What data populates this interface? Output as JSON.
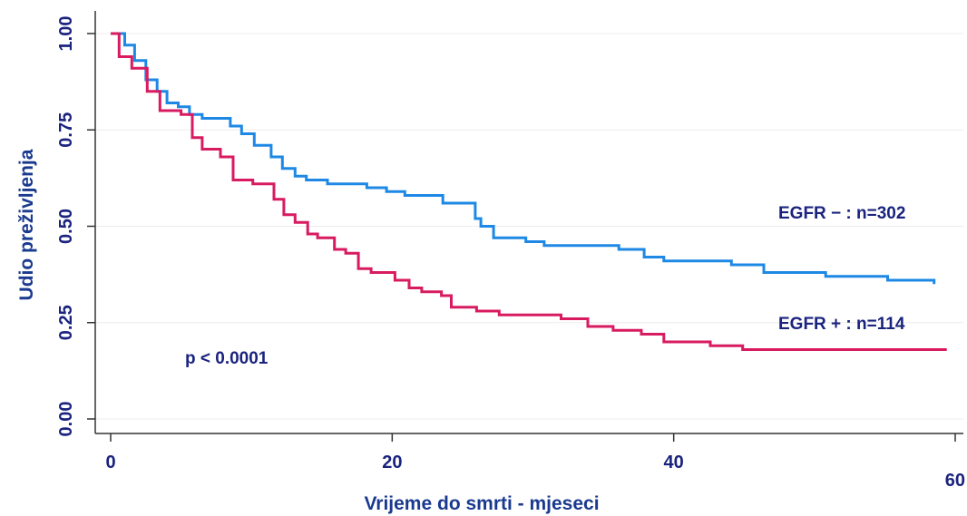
{
  "chart_data": {
    "type": "line",
    "step": true,
    "title": "",
    "xlabel": "Vrijeme do smrti - mjeseci",
    "ylabel": "Udio preživljenja",
    "xlim": [
      0,
      60
    ],
    "ylim": [
      0,
      1
    ],
    "x_ticks": [
      0,
      20,
      40,
      60
    ],
    "x_tick_labels": [
      "0",
      "20",
      "40",
      "60"
    ],
    "y_ticks": [
      0,
      0.25,
      0.5,
      0.75,
      1
    ],
    "y_tick_labels": [
      "0.00",
      "0.25",
      "0.50",
      "0.75",
      "1.00"
    ],
    "grid": "horizontal",
    "series": [
      {
        "name": "EGFR − : n=302",
        "color": "#1e88e5",
        "x": [
          0,
          1,
          1.7,
          2.5,
          3.3,
          4,
          4.8,
          5.6,
          6.5,
          8.5,
          9.3,
          10.2,
          11.4,
          12.2,
          13.1,
          13.9,
          14.6,
          15.4,
          16.7,
          18.2,
          19.6,
          20.9,
          23.6,
          25.9,
          26.3,
          27.2,
          29.5,
          30.8,
          32.8,
          36.1,
          37.9,
          39.3,
          41.1,
          44.1,
          46.4,
          50.8,
          55.2,
          58.5
        ],
        "y": [
          1,
          0.97,
          0.93,
          0.88,
          0.85,
          0.82,
          0.81,
          0.79,
          0.78,
          0.76,
          0.74,
          0.71,
          0.68,
          0.65,
          0.63,
          0.62,
          0.62,
          0.61,
          0.61,
          0.6,
          0.59,
          0.58,
          0.56,
          0.52,
          0.5,
          0.47,
          0.46,
          0.45,
          0.45,
          0.44,
          0.42,
          0.41,
          0.41,
          0.4,
          0.38,
          0.37,
          0.36,
          0.35
        ]
      },
      {
        "name": "EGFR + : n=114",
        "color": "#d81b60",
        "x": [
          0,
          0.6,
          1.5,
          2.6,
          3.5,
          5,
          5.8,
          6.5,
          7.8,
          8.7,
          10.1,
          11.6,
          12.3,
          13.1,
          14,
          14.7,
          15.9,
          16.7,
          17.6,
          18.5,
          20.2,
          21.2,
          22.1,
          23.5,
          24.2,
          26,
          27.6,
          32,
          33.9,
          35.7,
          37.7,
          39.3,
          42.6,
          44.9,
          59.4
        ],
        "y": [
          1,
          0.94,
          0.91,
          0.85,
          0.8,
          0.79,
          0.73,
          0.7,
          0.68,
          0.62,
          0.61,
          0.57,
          0.53,
          0.51,
          0.48,
          0.47,
          0.44,
          0.43,
          0.39,
          0.38,
          0.36,
          0.34,
          0.33,
          0.32,
          0.29,
          0.28,
          0.27,
          0.26,
          0.24,
          0.23,
          0.22,
          0.2,
          0.19,
          0.18,
          0.18
        ]
      }
    ],
    "annotations": [
      {
        "text": "EGFR − : n=302",
        "series_index": 0
      },
      {
        "text": "EGFR + : n=114",
        "series_index": 1
      },
      {
        "text": "p < 0.0001"
      }
    ]
  }
}
